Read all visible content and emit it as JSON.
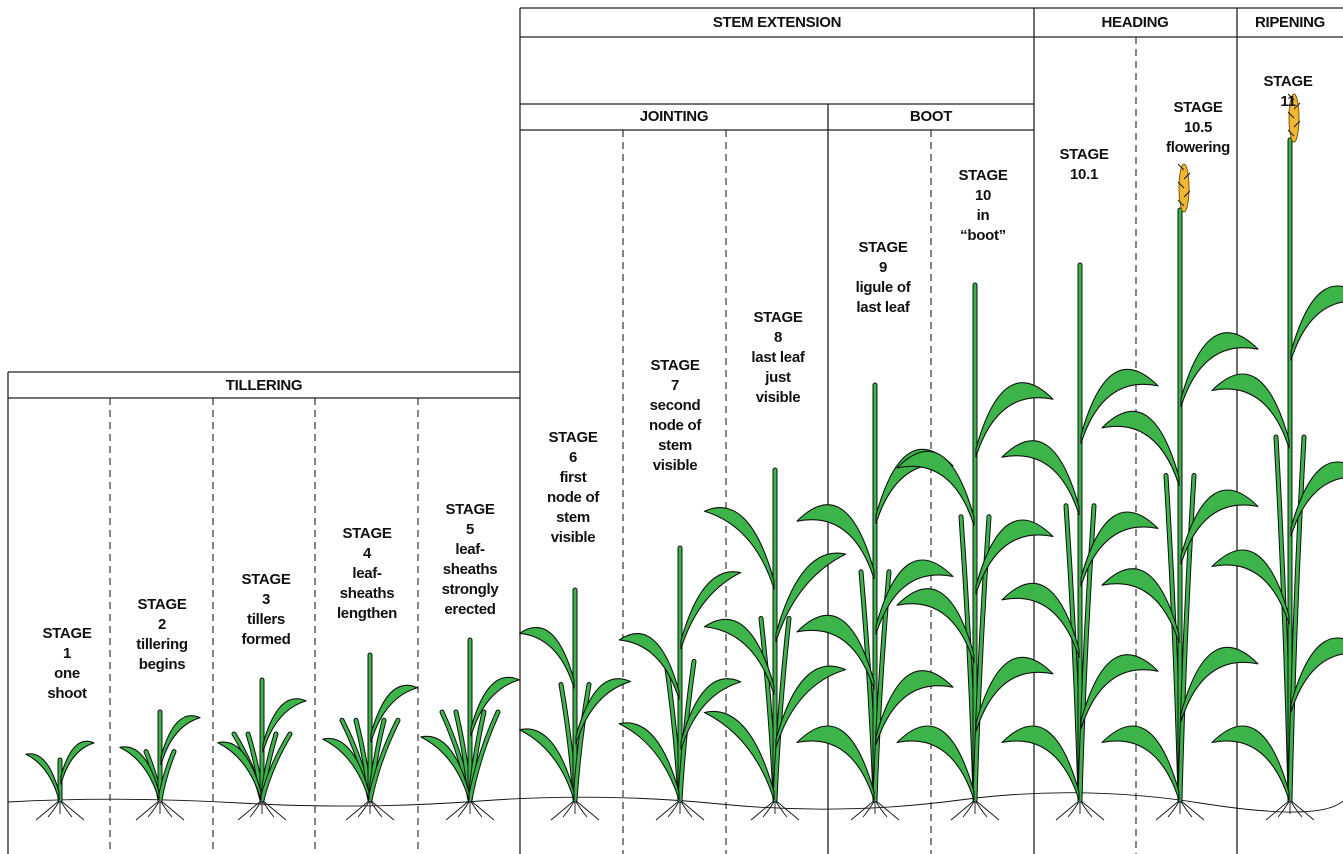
{
  "headers": [
    {
      "label": "TILLERING"
    },
    {
      "label": "STEM EXTENSION"
    },
    {
      "label": "HEADING"
    },
    {
      "label": "RIPENING"
    },
    {
      "label": "JOINTING"
    },
    {
      "label": "BOOT"
    }
  ],
  "stages": [
    {
      "lines": [
        "STAGE",
        "1",
        "one",
        "shoot"
      ]
    },
    {
      "lines": [
        "STAGE",
        "2",
        "tillering",
        "begins"
      ]
    },
    {
      "lines": [
        "STAGE",
        "3",
        "tillers",
        "formed"
      ]
    },
    {
      "lines": [
        "STAGE",
        "4",
        "leaf-",
        "sheaths",
        "lengthen"
      ]
    },
    {
      "lines": [
        "STAGE",
        "5",
        "leaf-",
        "sheaths",
        "strongly",
        "erected"
      ]
    },
    {
      "lines": [
        "STAGE",
        "6",
        "first",
        "node of",
        "stem",
        "visible"
      ]
    },
    {
      "lines": [
        "STAGE",
        "7",
        "second",
        "node of",
        "stem",
        "visible"
      ]
    },
    {
      "lines": [
        "STAGE",
        "8",
        "last leaf",
        "just",
        "visible"
      ]
    },
    {
      "lines": [
        "STAGE",
        "9",
        "ligule of",
        "last leaf"
      ]
    },
    {
      "lines": [
        "STAGE",
        "10",
        "in",
        "“boot”"
      ]
    },
    {
      "lines": [
        "STAGE",
        "10.1"
      ]
    },
    {
      "lines": [
        "STAGE",
        "10.5",
        "flowering"
      ]
    },
    {
      "lines": [
        "STAGE",
        "11"
      ]
    }
  ]
}
